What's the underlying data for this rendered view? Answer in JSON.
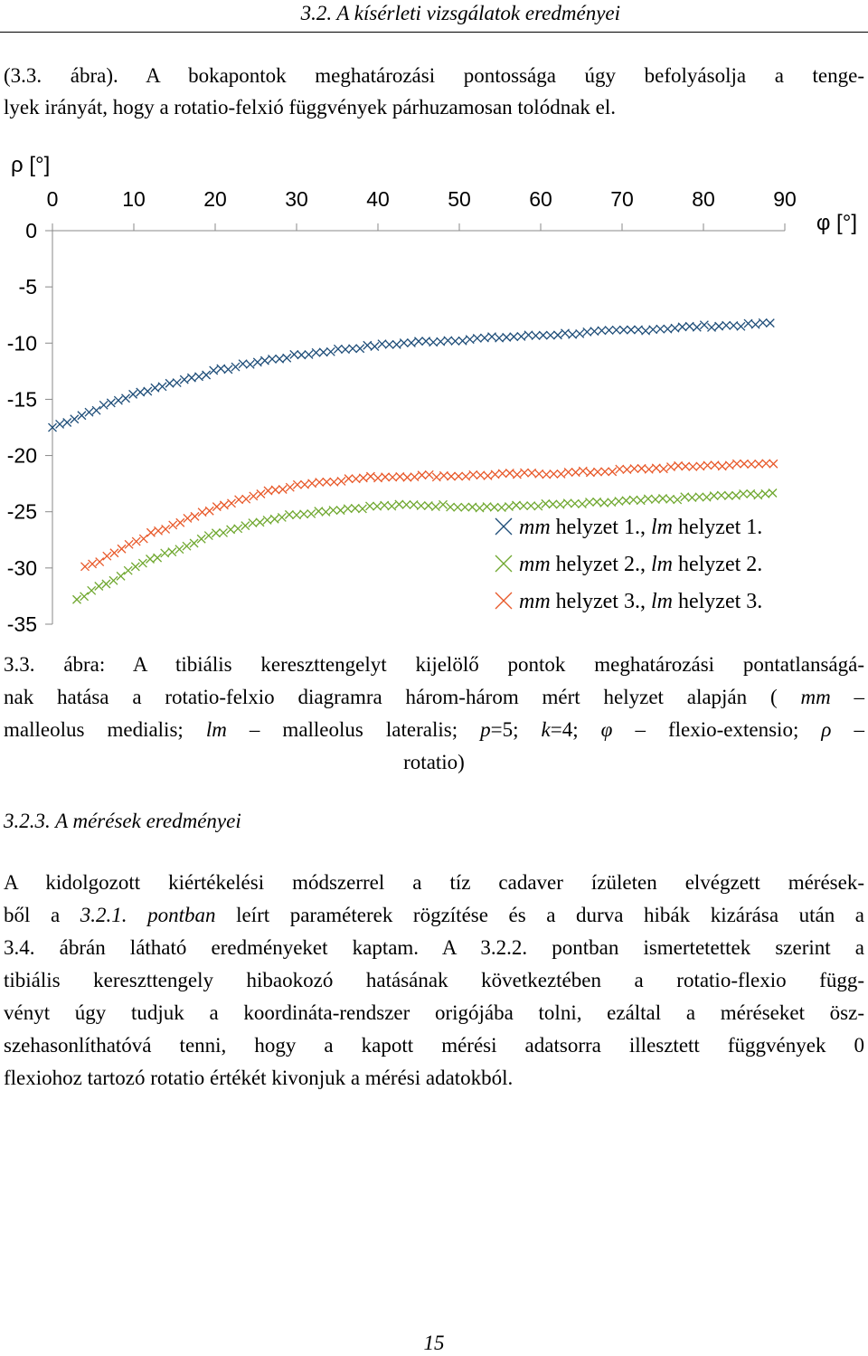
{
  "header": {
    "running_title": "3.2. A kísérleti vizsgálatok eredményei"
  },
  "intro": {
    "lines": [
      "(3.3. ábra). A bokapontok meghatározási pontossága úgy befolyásolja a tenge-",
      "lyek irányát, hogy a rotatio-felxió függvények párhuzamosan tolódnak el."
    ]
  },
  "chart_data": {
    "type": "scatter",
    "ylabel": "ρ [°]",
    "xlabel": "φ [°]",
    "xlim": [
      0,
      90
    ],
    "ylim": [
      -35,
      0
    ],
    "x_ticks": [
      "0",
      "10",
      "20",
      "30",
      "40",
      "50",
      "60",
      "70",
      "80",
      "90"
    ],
    "y_ticks": [
      "0",
      "-5",
      "-10",
      "-15",
      "-20",
      "-25",
      "-30",
      "-35"
    ],
    "x_axis_position": "top",
    "grid": false,
    "legend_position": "bottom-right",
    "marker": "x",
    "series": [
      {
        "name_mm": "mm",
        "name_mid": " helyzet 1., ",
        "name_lm": "lm",
        "name_end": " helyzet 1.",
        "color": "#1f4e79",
        "x": [
          0,
          2,
          4,
          6,
          8,
          10,
          12,
          15,
          18,
          20,
          25,
          30,
          35,
          40,
          45,
          50,
          55,
          60,
          65,
          70,
          75,
          80,
          85,
          89
        ],
        "y": [
          -17.5,
          -16.9,
          -16.3,
          -15.7,
          -15.1,
          -14.6,
          -14.1,
          -13.5,
          -12.9,
          -12.5,
          -11.7,
          -11.1,
          -10.6,
          -10.2,
          -9.9,
          -9.7,
          -9.5,
          -9.3,
          -9.1,
          -8.9,
          -8.7,
          -8.5,
          -8.4,
          -8.2
        ]
      },
      {
        "name_mm": "mm",
        "name_mid": " helyzet 2., ",
        "name_lm": "lm",
        "name_end": " helyzet 2.",
        "color": "#70a830",
        "x": [
          3,
          5,
          8,
          10,
          12,
          15,
          18,
          20,
          25,
          30,
          35,
          40,
          45,
          50,
          55,
          60,
          65,
          70,
          75,
          80,
          85,
          89
        ],
        "y": [
          -32.8,
          -32.0,
          -30.8,
          -30.0,
          -29.3,
          -28.4,
          -27.5,
          -27.0,
          -25.9,
          -25.2,
          -24.8,
          -24.5,
          -24.4,
          -24.5,
          -24.6,
          -24.4,
          -24.3,
          -24.1,
          -23.9,
          -23.7,
          -23.5,
          -23.3
        ]
      },
      {
        "name_mm": "mm",
        "name_mid": " helyzet 3., ",
        "name_lm": "lm",
        "name_end": " helyzet 3.",
        "color": "#e8592a",
        "x": [
          4,
          6,
          8,
          10,
          12,
          15,
          18,
          20,
          25,
          30,
          35,
          40,
          45,
          50,
          55,
          60,
          65,
          70,
          75,
          80,
          85,
          89
        ],
        "y": [
          -30.0,
          -29.3,
          -28.4,
          -27.7,
          -27.0,
          -26.1,
          -25.2,
          -24.7,
          -23.5,
          -22.6,
          -22.2,
          -21.9,
          -21.8,
          -21.8,
          -21.7,
          -21.6,
          -21.5,
          -21.3,
          -21.1,
          -20.9,
          -20.8,
          -20.7
        ]
      }
    ]
  },
  "caption": {
    "l1a": "3.3. ábra: A tibiális kereszttengelyt kijelölő pontok meghatározási pontatlanságá-",
    "l2a": "nak hatása a rotatio-felxio diagramra három-három mért helyzet alapján ( ",
    "mm": "mm",
    "l2b": " –",
    "l3a": "malleolus medialis; ",
    "lm": "lm",
    "l3b": " – malleolus lateralis; ",
    "p": "p",
    "l3c": "=5; ",
    "k": "k",
    "l3d": "=4; ",
    "phi": "φ",
    "l3e": " – flexio-extensio; ",
    "rho": "ρ",
    "l3f": " –",
    "l4": "rotatio)"
  },
  "section_title": "3.2.3. A mérések eredményei",
  "body": {
    "l1": "A kidolgozott kiértékelési módszerrel a tíz cadaver ízületen elvégzett mérések-",
    "l2a": "ből a ",
    "ref1": "3.2.1. pontban",
    "l2b": " leírt paraméterek rögzítése és a durva hibák kizárása után a",
    "l3": "3.4. ábrán látható eredményeket kaptam. A 3.2.2. pontban ismertetettek szerint a",
    "l4": "tibiális kereszttengely hibaokozó hatásának következtében a rotatio-flexio függ-",
    "l5": "vényt úgy tudjuk a koordináta-rendszer origójába tolni, ezáltal a méréseket ösz-",
    "l6": "szehasonlíthatóvá tenni, hogy a kapott mérési adatsorra illesztett függvények 0",
    "l7": "flexiohoz tartozó rotatio értékét kivonjuk a mérési adatokból."
  },
  "page_number": "15"
}
